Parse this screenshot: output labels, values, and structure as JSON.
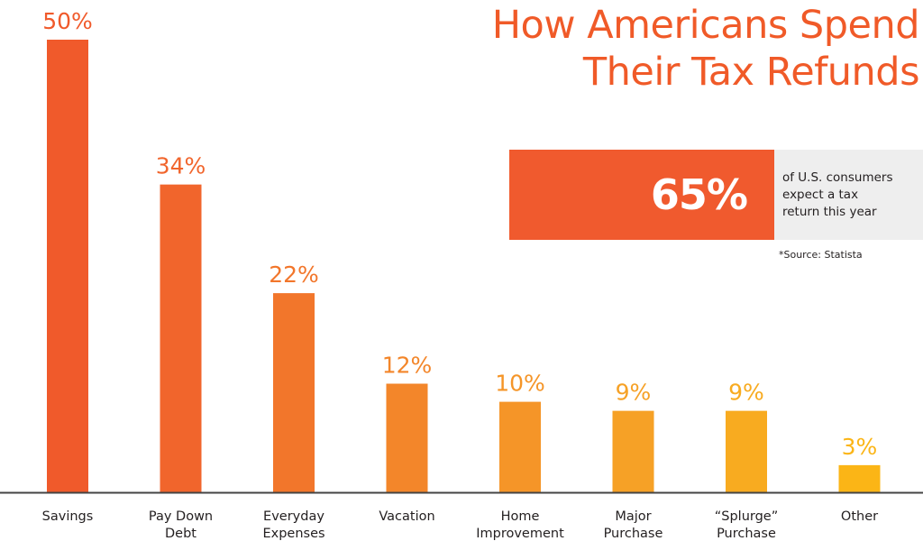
{
  "header": {
    "title_line1": "How Americans Spend",
    "title_line2": "Their Tax Refunds"
  },
  "stat": {
    "value": "65%",
    "desc_line1": "of U.S. consumers",
    "desc_line2": "expect a tax",
    "desc_line3": "return this year"
  },
  "source": "*Source: Statista",
  "colors": {
    "title": "#f05a28",
    "stat_box": "#f05a2e",
    "stat_panel": "#eeeeee",
    "axis": "#444444",
    "text": "#231f20"
  },
  "chart_data": {
    "type": "bar",
    "title": "How Americans Spend Their Tax Refunds",
    "categories": [
      [
        "Savings"
      ],
      [
        "Pay Down",
        "Debt"
      ],
      [
        "Everyday",
        "Expenses"
      ],
      [
        "Vacation"
      ],
      [
        "Home",
        "Improvement"
      ],
      [
        "Major",
        "Purchase"
      ],
      [
        "“Splurge”",
        "Purchase"
      ],
      [
        "Other"
      ]
    ],
    "values": [
      50,
      34,
      22,
      12,
      10,
      9,
      9,
      3
    ],
    "value_labels": [
      "50%",
      "34%",
      "22%",
      "12%",
      "10%",
      "9%",
      "9%",
      "3%"
    ],
    "bar_colors": [
      "#f05a2b",
      "#f1652c",
      "#f2762b",
      "#f3862a",
      "#f59528",
      "#f6a126",
      "#f8ab20",
      "#fbb516"
    ],
    "ylim": [
      0,
      50
    ],
    "grid": false,
    "legend": "none"
  }
}
